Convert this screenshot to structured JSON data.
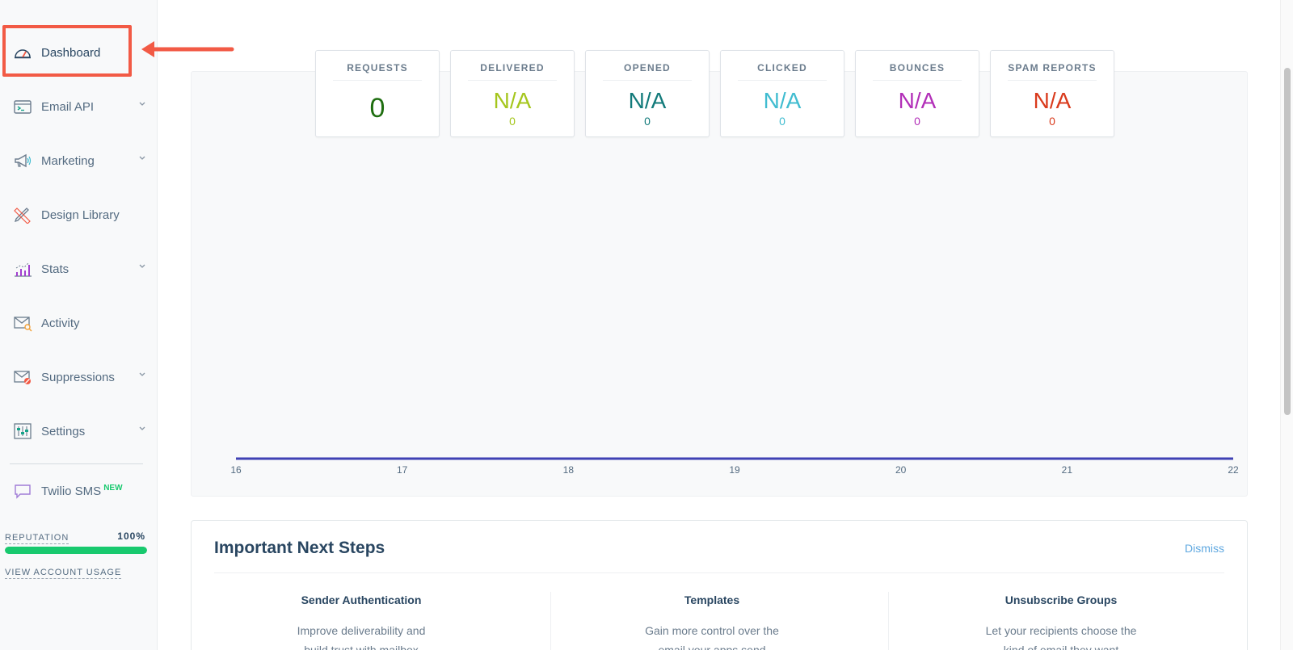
{
  "sidebar": {
    "items": [
      {
        "label": "Dashboard",
        "icon": "dashboard-gauge-icon",
        "has_chevron": false
      },
      {
        "label": "Email API",
        "icon": "code-window-icon",
        "has_chevron": true
      },
      {
        "label": "Marketing",
        "icon": "megaphone-icon",
        "has_chevron": true
      },
      {
        "label": "Design Library",
        "icon": "pencil-ruler-icon",
        "has_chevron": false
      },
      {
        "label": "Stats",
        "icon": "bar-chart-icon",
        "has_chevron": true
      },
      {
        "label": "Activity",
        "icon": "envelope-search-icon",
        "has_chevron": false
      },
      {
        "label": "Suppressions",
        "icon": "envelope-blocked-icon",
        "has_chevron": true
      },
      {
        "label": "Settings",
        "icon": "sliders-icon",
        "has_chevron": true
      }
    ],
    "twilio": {
      "label": "Twilio SMS",
      "badge": "NEW",
      "icon": "chat-bubble-icon"
    },
    "reputation": {
      "label": "REPUTATION",
      "value_text": "100%",
      "value": 100
    },
    "usage_link": "VIEW ACCOUNT USAGE"
  },
  "stats": [
    {
      "title": "REQUESTS",
      "value": "0",
      "color": "#1f6e10"
    },
    {
      "title": "DELIVERED",
      "value": "N/A",
      "sub": "0",
      "color": "#a5c61d"
    },
    {
      "title": "OPENED",
      "value": "N/A",
      "sub": "0",
      "color": "#127a7a"
    },
    {
      "title": "CLICKED",
      "value": "N/A",
      "sub": "0",
      "color": "#40bcd0"
    },
    {
      "title": "BOUNCES",
      "value": "N/A",
      "sub": "0",
      "color": "#b22fb8"
    },
    {
      "title": "SPAM REPORTS",
      "value": "N/A",
      "sub": "0",
      "color": "#d93a1c"
    }
  ],
  "chart_data": {
    "type": "line",
    "x": [
      "16",
      "17",
      "18",
      "19",
      "20",
      "21",
      "22"
    ],
    "series": [
      {
        "values": [
          0,
          0,
          0,
          0,
          0,
          0,
          0
        ],
        "color": "#3f41b4"
      }
    ],
    "title": "",
    "xlabel": "",
    "ylabel": ""
  },
  "next_steps": {
    "title": "Important Next Steps",
    "dismiss": "Dismiss",
    "columns": [
      {
        "title": "Sender Authentication",
        "desc1": "Improve deliverability and",
        "desc2": "build trust with mailbox"
      },
      {
        "title": "Templates",
        "desc1": "Gain more control over the",
        "desc2": "email your apps send"
      },
      {
        "title": "Unsubscribe Groups",
        "desc1": "Let your recipients choose the",
        "desc2": "kind of email they want"
      }
    ]
  },
  "colors": {
    "accent": "#f25a45",
    "reputation_bar": "#18c96e",
    "link": "#5fa8e0"
  }
}
